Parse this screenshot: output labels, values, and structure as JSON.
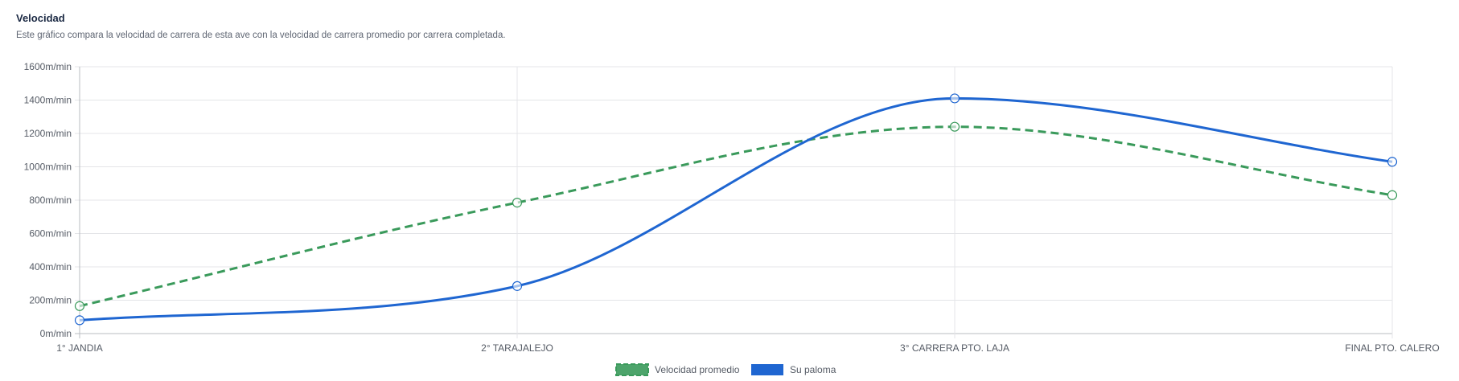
{
  "header": {
    "title": "Velocidad",
    "subtitle": "Este gráfico compara la velocidad de carrera de esta ave con la velocidad de carrera promedio por carrera completada."
  },
  "chart_data": {
    "type": "line",
    "categories": [
      "1° JANDIA",
      "2° TARAJALEJO",
      "3° CARRERA PTO. LAJA",
      "FINAL PTO. CALERO"
    ],
    "ylim": [
      0,
      1600
    ],
    "y_ticks": [
      0,
      200,
      400,
      600,
      800,
      1000,
      1200,
      1400,
      1600
    ],
    "y_tick_labels": [
      "0m/min",
      "200m/min",
      "400m/min",
      "600m/min",
      "800m/min",
      "1000m/min",
      "1200m/min",
      "1400m/min",
      "1600m/min"
    ],
    "grid": true,
    "legend_position": "bottom",
    "series": [
      {
        "name": "Velocidad promedio",
        "values": [
          165,
          785,
          1240,
          830
        ],
        "color": "#3a9a5b",
        "dashed": true
      },
      {
        "name": "Su paloma",
        "values": [
          80,
          285,
          1410,
          1030
        ],
        "color": "#1f66d1",
        "dashed": false
      }
    ]
  }
}
